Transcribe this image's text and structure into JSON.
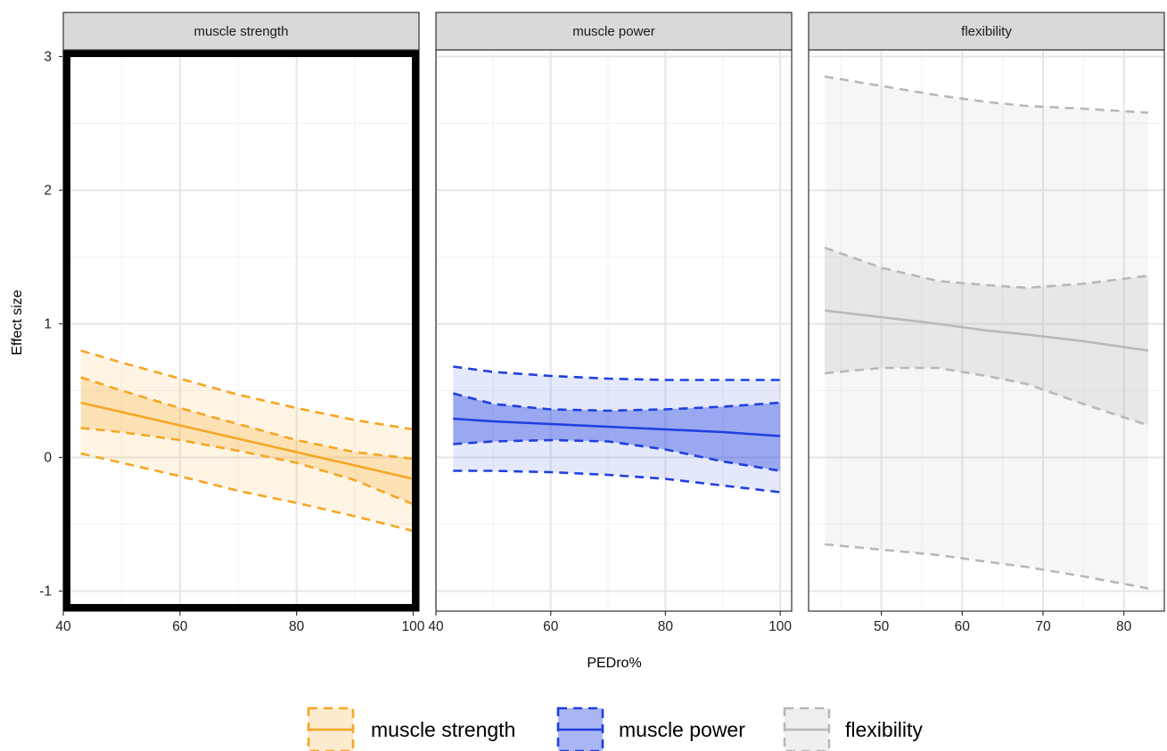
{
  "chart_data": {
    "type": "line",
    "ylabel": "Effect size",
    "xlabel": "PEDro%",
    "y_ticks": [
      "-1",
      "0",
      "1",
      "2",
      "3"
    ],
    "ylim": [
      -1.15,
      3.05
    ],
    "grid": true,
    "legend_position": "bottom",
    "legend": [
      {
        "label": "muscle strength",
        "color": "#F5A623"
      },
      {
        "label": "muscle power",
        "color": "#1F3FE0"
      },
      {
        "label": "flexibility",
        "color": "#B8B8B8"
      }
    ],
    "panels": [
      {
        "title": "muscle strength",
        "color": "#F5A623",
        "highlighted": true,
        "xlim": [
          40,
          101
        ],
        "x_ticks": [
          "40",
          "60",
          "80",
          "100"
        ],
        "series": {
          "x": [
            43,
            50,
            60,
            70,
            80,
            90,
            100
          ],
          "fit": [
            0.41,
            0.34,
            0.24,
            0.14,
            0.04,
            -0.06,
            -0.16
          ],
          "ci_upper": [
            0.6,
            0.5,
            0.37,
            0.25,
            0.13,
            0.04,
            -0.01
          ],
          "ci_lower": [
            0.22,
            0.19,
            0.13,
            0.05,
            -0.04,
            -0.17,
            -0.35
          ],
          "pi_upper": [
            0.8,
            0.71,
            0.59,
            0.47,
            0.37,
            0.28,
            0.21
          ],
          "pi_lower": [
            0.03,
            -0.04,
            -0.14,
            -0.25,
            -0.34,
            -0.44,
            -0.55
          ]
        }
      },
      {
        "title": "muscle power",
        "color": "#1F3FE0",
        "highlighted": false,
        "xlim": [
          40,
          102
        ],
        "x_ticks": [
          "40",
          "60",
          "80",
          "100"
        ],
        "series": {
          "x": [
            43,
            50,
            60,
            70,
            80,
            90,
            100
          ],
          "fit": [
            0.29,
            0.27,
            0.25,
            0.23,
            0.21,
            0.19,
            0.16
          ],
          "ci_upper": [
            0.48,
            0.4,
            0.36,
            0.35,
            0.36,
            0.38,
            0.41
          ],
          "ci_lower": [
            0.1,
            0.12,
            0.13,
            0.12,
            0.06,
            -0.03,
            -0.1
          ],
          "pi_upper": [
            0.68,
            0.64,
            0.61,
            0.59,
            0.58,
            0.58,
            0.58
          ],
          "pi_lower": [
            -0.1,
            -0.1,
            -0.11,
            -0.13,
            -0.16,
            -0.21,
            -0.26
          ]
        }
      },
      {
        "title": "flexibility",
        "color": "#B8B8B8",
        "highlighted": false,
        "xlim": [
          41,
          85
        ],
        "x_ticks": [
          "50",
          "60",
          "70",
          "80"
        ],
        "series": {
          "x": [
            43,
            50,
            57,
            63,
            68,
            75,
            83
          ],
          "fit": [
            1.1,
            1.05,
            1.0,
            0.95,
            0.92,
            0.87,
            0.8
          ],
          "ci_upper": [
            1.57,
            1.42,
            1.32,
            1.29,
            1.27,
            1.3,
            1.36
          ],
          "ci_lower": [
            0.63,
            0.67,
            0.67,
            0.61,
            0.55,
            0.4,
            0.24
          ],
          "pi_upper": [
            2.85,
            2.78,
            2.71,
            2.66,
            2.63,
            2.61,
            2.58
          ],
          "pi_lower": [
            -0.65,
            -0.69,
            -0.73,
            -0.78,
            -0.82,
            -0.89,
            -0.98
          ]
        }
      }
    ]
  }
}
